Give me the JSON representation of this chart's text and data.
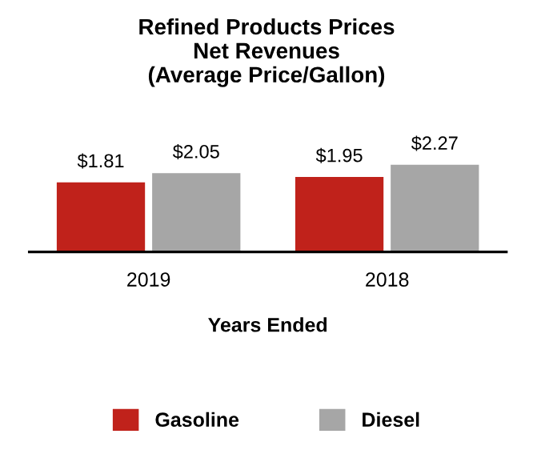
{
  "chart_data": {
    "type": "bar",
    "title": "Refined Products Prices\nNet Revenues\n(Average Price/Gallon)",
    "xlabel": "Years Ended",
    "categories": [
      "2019",
      "2018"
    ],
    "series": [
      {
        "name": "Gasoline",
        "color": "#c0221b",
        "values": [
          1.81,
          1.95
        ],
        "value_labels": [
          "$1.81",
          "$1.95"
        ]
      },
      {
        "name": "Diesel",
        "color": "#a6a6a6",
        "values": [
          2.05,
          2.27
        ],
        "value_labels": [
          "$2.05",
          "$2.27"
        ]
      }
    ],
    "tick_labels": "x",
    "legend": "bottom",
    "grid": false
  }
}
